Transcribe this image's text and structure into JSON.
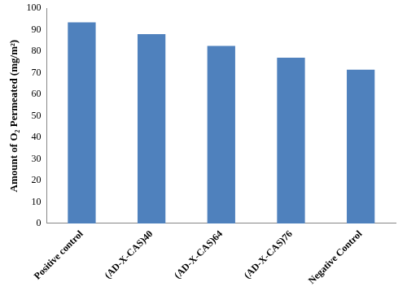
{
  "chart_data": {
    "type": "bar",
    "y_label": "Amount of O₂ Permeated (mg/m²)",
    "categories": [
      "Positive control",
      "(AD-X-CAS)40",
      "(AD-X-CAS)64",
      "(AD-X-CAS)76",
      "Negative Control"
    ],
    "values": [
      93.5,
      88,
      82.5,
      77,
      71.5
    ],
    "color": "#4f81bd",
    "ylim": [
      0,
      100
    ],
    "yticks": [
      0,
      10,
      20,
      30,
      40,
      50,
      60,
      70,
      80,
      90,
      100
    ],
    "grid": false
  }
}
